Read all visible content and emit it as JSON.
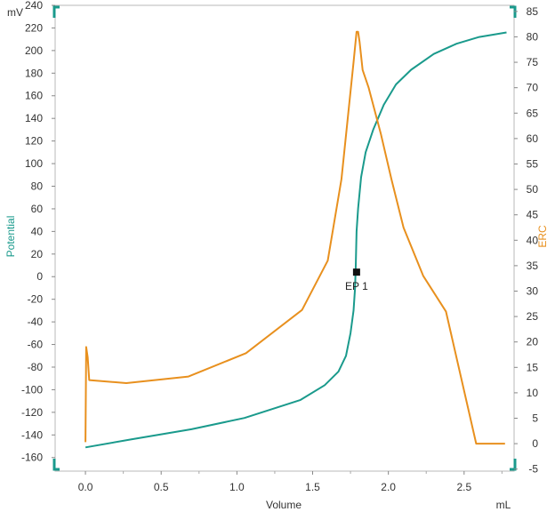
{
  "chart_data": {
    "type": "line",
    "x_unit": "mL",
    "xlabel": "Volume",
    "x_ticks": [
      "0.0",
      "0.5",
      "1.0",
      "1.5",
      "2.0",
      "2.5"
    ],
    "xlim": [
      -0.2,
      2.83
    ],
    "y_left": {
      "unit": "mV",
      "label": "Potential",
      "lim": [
        -172,
        240
      ],
      "ticks": [
        240,
        220,
        200,
        180,
        160,
        140,
        120,
        100,
        80,
        60,
        40,
        20,
        0,
        -20,
        -40,
        -60,
        -80,
        -100,
        -120,
        -140,
        -160
      ]
    },
    "y_right": {
      "label": "ERC",
      "lim": [
        -5.4,
        86.2
      ],
      "ticks": [
        85,
        80,
        75,
        70,
        65,
        60,
        55,
        50,
        45,
        40,
        35,
        30,
        25,
        20,
        15,
        10,
        5,
        0,
        -5
      ]
    },
    "grid": false,
    "series": [
      {
        "name": "Potential",
        "axis": "left",
        "color": "#1a9a8c",
        "x": [
          0.0,
          0.3,
          0.7,
          1.05,
          1.42,
          1.58,
          1.67,
          1.72,
          1.75,
          1.77,
          1.78,
          1.785,
          1.79,
          1.8,
          1.82,
          1.85,
          1.9,
          1.97,
          2.05,
          2.15,
          2.3,
          2.45,
          2.6,
          2.78
        ],
        "y": [
          -151,
          -144,
          -135,
          -125,
          -109,
          -96,
          -84,
          -70,
          -50,
          -30,
          -10,
          10,
          40,
          60,
          88,
          110,
          130,
          152,
          170,
          183,
          197,
          206,
          212,
          216
        ]
      },
      {
        "name": "ERC",
        "axis": "right",
        "color": "#e8901e",
        "x": [
          0.0,
          0.005,
          0.015,
          0.025,
          0.27,
          0.68,
          1.06,
          1.43,
          1.6,
          1.69,
          1.77,
          1.79,
          1.8,
          1.81,
          1.83,
          1.87,
          1.95,
          2.02,
          2.1,
          2.23,
          2.38,
          2.58,
          2.77
        ],
        "y": [
          0.3,
          19,
          17,
          12.5,
          11.9,
          13.2,
          17.8,
          26.3,
          36,
          52,
          75,
          81,
          81,
          79,
          73.5,
          70,
          61,
          52,
          42.5,
          33,
          26,
          0,
          0
        ]
      }
    ],
    "annotations": [
      {
        "label": "EP 1",
        "x": 1.79,
        "y": 4
      }
    ]
  }
}
